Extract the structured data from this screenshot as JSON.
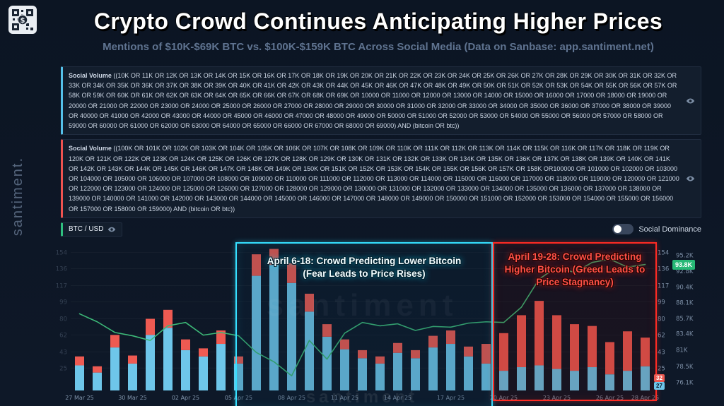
{
  "header": {
    "title": "Crypto Crowd Continues Anticipating Higher Prices",
    "subtitle": "Mentions of $10K-$69K BTC vs. $100K-$159K BTC Across Social Media (Data on Sanbase: app.santiment.net)"
  },
  "brand": {
    "vertical_text": "santiment.",
    "watermark_center": "santiment",
    "watermark_bottom": "santiment"
  },
  "queries": [
    {
      "label": "Social Volume",
      "accent": "#55c1ea",
      "text": "((10K OR 11K OR 12K OR 13K OR 14K OR 15K OR 16K OR 17K OR 18K OR 19K OR 20K OR 21K OR 22K OR 23K OR 24K OR 25K OR 26K OR 27K OR 28K OR 29K OR 30K OR 31K OR 32K OR 33K OR 34K OR 35K OR 36K OR 37K OR 38K OR 39K OR 40K OR 41K OR 42K OR 43K OR 44K OR 45K OR 46K OR 47K OR 48K OR 49K OR 50K OR 51K OR 52K OR 53K OR 54K OR 55K OR 56K OR 57K OR 58K OR 59K OR 60K OR 61K OR 62K OR 63K OR 64K OR 65K OR 66K OR 67K OR 68K OR 69K OR 10000 OR 11000 OR 12000 OR 13000 OR 14000 OR 15000 OR 16000 OR 17000 OR 18000 OR 19000 OR 20000 OR 21000 OR 22000 OR 23000 OR 24000 OR 25000 OR 26000 OR 27000 OR 28000 OR 29000 OR 30000 OR 31000 OR 32000 OR 33000 OR 34000 OR 35000 OR 36000 OR 37000 OR 38000 OR 39000 OR 40000 OR 41000 OR 42000 OR 43000 OR 44000 OR 45000 OR 46000 OR 47000 OR 48000 OR 49000 OR 50000 OR 51000 OR 52000 OR 53000 OR 54000 OR 55000 OR 56000 OR 57000 OR 58000 OR 59000 OR 60000 OR 61000 OR 62000 OR 63000 OR 64000 OR 65000 OR 66000 OR 67000 OR 68000 OR 69000) AND (bitcoin OR btc))"
    },
    {
      "label": "Social Volume",
      "accent": "#ef5350",
      "text": "((100K OR 101K OR 102K OR 103K OR 104K OR 105K OR 106K OR 107K OR 108K OR 109K OR 110K OR 111K OR 112K OR 113K OR 114K OR 115K OR 116K OR 117K OR 118K OR 119K OR 120K OR 121K OR 122K OR 123K OR 124K OR 125K OR 126K OR 127K OR 128K OR 129K OR 130K OR 131K OR 132K OR 133K OR 134K OR 135K OR 136K OR 137K OR 138K OR 139K OR 140K OR 141K OR 142K OR 143K OR 144K OR 145K OR 146K OR 147K OR 148K OR 149K OR 150K OR 151K OR 152K OR 153K OR 154K OR 155K OR 156K OR 157K OR 158K OR100000 OR 101000 OR 102000 OR 103000 OR 104000 OR 105000 OR 106000 OR 107000 OR 108000 OR 109000 OR 110000 OR 111000 OR 112000 OR 113000 OR 114000 OR 115000 OR 116000 OR 117000 OR 118000 OR 119000 OR 120000 OR 121000 OR 122000 OR 123000 OR 124000 OR 125000 OR 126000 OR 127000 OR 128000 OR 129000 OR 130000 OR 131000 OR 132000 OR 133000 OR 134000 OR 135000 OR 136000 OR 137000 OR 138000 OR 139000 OR 140000 OR 141000 OR 142000 OR 143000 OR 144000 OR 145000 OR 146000 OR 147000 OR 148000 OR 149000 OR 150000 OR 151000 OR 152000 OR 153000 OR 154000 OR 155000 OR 156000 OR 157000 OR 158000 OR 159000) AND (bitcoin OR btc))"
    }
  ],
  "legend": {
    "price_label": "BTC / USD",
    "accent": "#2fbf7f",
    "toggle_label": "Social Dominance",
    "toggle_on": false
  },
  "annotations": [
    {
      "text": "April 6-18: Crowd Predicting Lower Bitcoin (Fear Leads to Price Rises)",
      "accent": "#35dfff"
    },
    {
      "text": "April 19-28: Crowd Predicting Higher Bitcoin (Greed Leads to Price Stagnancy)",
      "accent": "#ff2b24"
    }
  ],
  "badges": {
    "price": "93.8K",
    "red_value": "32",
    "cyan_value": "27"
  },
  "colors": {
    "background": "#0d1626",
    "bar_low_range": "#6ec6ea",
    "bar_high_range": "#ee5a52",
    "price_line": "#3db978",
    "accent_green": "#27b876",
    "accent_cyan": "#35dfff",
    "accent_red": "#ff2b24"
  },
  "chart_data": {
    "type": "bar",
    "subtype": "stacked bars with price line overlay",
    "x_dates": [
      "27 Mar 25",
      "28 Mar 25",
      "29 Mar 25",
      "30 Mar 25",
      "31 Mar 25",
      "01 Apr 25",
      "02 Apr 25",
      "03 Apr 25",
      "04 Apr 25",
      "05 Apr 25",
      "06 Apr 25",
      "07 Apr 25",
      "08 Apr 25",
      "09 Apr 25",
      "10 Apr 25",
      "11 Apr 25",
      "12 Apr 25",
      "13 Apr 25",
      "14 Apr 25",
      "15 Apr 25",
      "16 Apr 25",
      "17 Apr 25",
      "18 Apr 25",
      "19 Apr 25",
      "20 Apr 25",
      "21 Apr 25",
      "22 Apr 25",
      "23 Apr 25",
      "24 Apr 25",
      "25 Apr 25",
      "26 Apr 25",
      "27 Apr 25",
      "28 Apr 25"
    ],
    "series": [
      {
        "name": "Social Volume [$10K-$69K BTC]",
        "type": "bar",
        "color": "#6ec6ea",
        "values": [
          28,
          20,
          48,
          30,
          62,
          70,
          45,
          38,
          52,
          30,
          128,
          140,
          120,
          88,
          60,
          46,
          36,
          30,
          42,
          36,
          48,
          52,
          38,
          30,
          22,
          26,
          28,
          24,
          22,
          26,
          18,
          22,
          27
        ]
      },
      {
        "name": "Social Volume [$100K-$159K BTC]",
        "type": "bar",
        "color": "#ee5a52",
        "values": [
          10,
          7,
          14,
          9,
          18,
          20,
          12,
          9,
          15,
          8,
          24,
          18,
          22,
          20,
          14,
          11,
          9,
          8,
          11,
          9,
          13,
          15,
          11,
          22,
          42,
          58,
          72,
          60,
          52,
          46,
          36,
          44,
          32
        ]
      },
      {
        "name": "BTC / USD",
        "type": "line",
        "color": "#3db978",
        "values": [
          86.4,
          85.2,
          83.6,
          83.1,
          82.4,
          84.6,
          85.1,
          83.2,
          83.6,
          83.1,
          80.6,
          79.2,
          77.1,
          82.4,
          79.6,
          83.5,
          85.1,
          84.6,
          84.9,
          83.9,
          84.5,
          84.4,
          85.0,
          85.2,
          85.1,
          87.4,
          91.6,
          93.4,
          92.6,
          94.1,
          94.6,
          93.4,
          93.8
        ]
      }
    ],
    "volume_axis": {
      "ticks": [
        154,
        136,
        117,
        99,
        80,
        62,
        43,
        25
      ],
      "max": 160,
      "position": "right-inner and faint left"
    },
    "price_axis": {
      "tick_labels": [
        "95.2K",
        "92.8K",
        "90.4K",
        "88.1K",
        "85.7K",
        "83.4K",
        "81K",
        "78.5K",
        "76.1K"
      ],
      "tick_values": [
        95.2,
        92.8,
        90.4,
        88.1,
        85.7,
        83.4,
        81,
        78.5,
        76.1
      ],
      "min": 74.9,
      "max": 96.4,
      "position": "far right",
      "current_price": "93.8K"
    },
    "date_ticks": [
      {
        "i": 0,
        "label": "27 Mar 25"
      },
      {
        "i": 3,
        "label": "30 Mar 25"
      },
      {
        "i": 6,
        "label": "02 Apr 25"
      },
      {
        "i": 9,
        "label": "05 Apr 25"
      },
      {
        "i": 12,
        "label": "08 Apr 25"
      },
      {
        "i": 15,
        "label": "11 Apr 25"
      },
      {
        "i": 18,
        "label": "14 Apr 25"
      },
      {
        "i": 21,
        "label": "17 Apr 25"
      },
      {
        "i": 24,
        "label": "20 Apr 25"
      },
      {
        "i": 27,
        "label": "23 Apr 25"
      },
      {
        "i": 30,
        "label": "26 Apr 25"
      },
      {
        "i": 32,
        "label": "28 Apr 25"
      }
    ],
    "grid": "faint horizontal",
    "legend_position": "top-left chips above chart"
  }
}
